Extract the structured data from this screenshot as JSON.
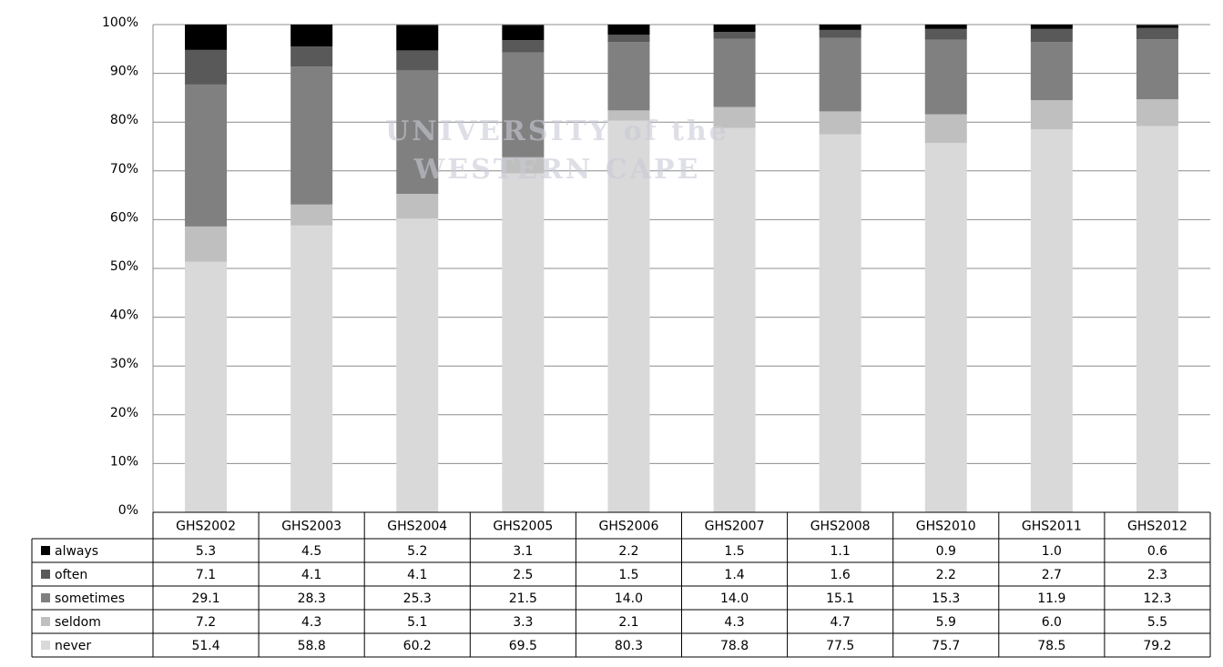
{
  "chart_data": {
    "type": "stacked-bar",
    "categories": [
      "GHS2002",
      "GHS2003",
      "GHS2004",
      "GHS2005",
      "GHS2006",
      "GHS2007",
      "GHS2008",
      "GHS2010",
      "GHS2011",
      "GHS2012"
    ],
    "series": [
      {
        "name": "always",
        "color": "#000000",
        "values": [
          5.3,
          4.5,
          5.2,
          3.1,
          2.2,
          1.5,
          1.1,
          0.9,
          1.0,
          0.6
        ],
        "value_labels": [
          "5.3",
          "4.5",
          "5.2",
          "3.1",
          "2.2",
          "1.5",
          "1.1",
          "0.9",
          "1.0",
          "0.6"
        ]
      },
      {
        "name": "often",
        "color": "#595959",
        "values": [
          7.1,
          4.1,
          4.1,
          2.5,
          1.5,
          1.4,
          1.6,
          2.2,
          2.7,
          2.3
        ]
      },
      {
        "name": "sometimes",
        "color": "#808080",
        "values": [
          29.1,
          28.3,
          25.3,
          21.5,
          14.0,
          14.0,
          15.1,
          15.3,
          11.9,
          12.3
        ],
        "value_labels": [
          "29.1",
          "28.3",
          "25.3",
          "21.5",
          "14.0",
          "14.0",
          "15.1",
          "15.3",
          "11.9",
          "12.3"
        ]
      },
      {
        "name": "seldom",
        "color": "#bfbfbf",
        "values": [
          7.2,
          4.3,
          5.1,
          3.3,
          2.1,
          4.3,
          4.7,
          5.9,
          6.0,
          5.5
        ],
        "value_labels": [
          "7.2",
          "4.3",
          "5.1",
          "3.3",
          "2.1",
          "4.3",
          "4.7",
          "5.9",
          "6.0",
          "5.5"
        ]
      },
      {
        "name": "never",
        "color": "#d9d9d9",
        "values": [
          51.4,
          58.8,
          60.2,
          69.5,
          80.3,
          78.8,
          77.5,
          75.7,
          78.5,
          79.2
        ]
      }
    ],
    "ylim": [
      0,
      100
    ],
    "yticks": [
      {
        "value": 0,
        "label": "0%"
      },
      {
        "value": 10,
        "label": "10%"
      },
      {
        "value": 20,
        "label": "20%"
      },
      {
        "value": 30,
        "label": "30%"
      },
      {
        "value": 40,
        "label": "40%"
      },
      {
        "value": 50,
        "label": "50%"
      },
      {
        "value": 60,
        "label": "60%"
      },
      {
        "value": 70,
        "label": "70%"
      },
      {
        "value": 80,
        "label": "80%"
      },
      {
        "value": 90,
        "label": "90%"
      },
      {
        "value": 100,
        "label": "100%"
      }
    ],
    "grid": true,
    "watermark": [
      "UNIVERSITY of the",
      "WESTERN CAPE"
    ]
  }
}
